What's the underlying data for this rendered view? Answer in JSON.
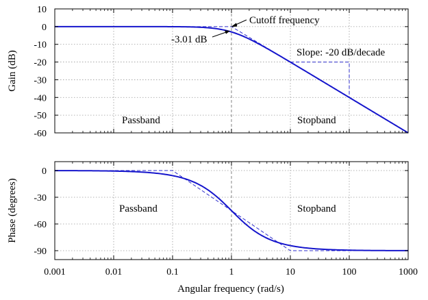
{
  "chart_data": [
    {
      "type": "line",
      "ylabel": "Gain (dB)",
      "xscale": "log",
      "xlim": [
        0.001,
        1000
      ],
      "ylim": [
        -60,
        10
      ],
      "yticks": [
        "10",
        "0",
        "-10",
        "-20",
        "-30",
        "-40",
        "-50",
        "-60"
      ],
      "grid": true,
      "series": [
        {
          "x": [
            0.001,
            0.01,
            0.1,
            0.3,
            0.5,
            1,
            2,
            3,
            10,
            100,
            1000
          ],
          "y": [
            0,
            0,
            -0.04,
            -0.37,
            -0.97,
            -3.01,
            -6.99,
            -10,
            -20.04,
            -40,
            -60
          ]
        }
      ],
      "asymptote": {
        "x": [
          0.001,
          1,
          1000
        ],
        "y": [
          0,
          0,
          -60
        ]
      },
      "slope_triangle": {
        "x": [
          10,
          100,
          100
        ],
        "y": [
          -20,
          -20,
          -40
        ]
      },
      "annotations": {
        "cutoff": "Cutoff frequency",
        "minus3db": "-3.01 dB",
        "slope": "Slope: -20 dB/decade",
        "passband": "Passband",
        "stopband": "Stopband"
      }
    },
    {
      "type": "line",
      "ylabel": "Phase (degrees)",
      "xlabel": "Angular frequency (rad/s)",
      "xscale": "log",
      "xlim": [
        0.001,
        1000
      ],
      "ylim": [
        -100,
        10
      ],
      "xticks": [
        "0.001",
        "0.01",
        "0.1",
        "1",
        "10",
        "100",
        "1000"
      ],
      "yticks": [
        "0",
        "-30",
        "-60",
        "-90"
      ],
      "grid": true,
      "series": [
        {
          "x": [
            0.001,
            0.01,
            0.1,
            0.2,
            0.5,
            1,
            2,
            5,
            10,
            100,
            1000
          ],
          "y": [
            -0.06,
            -0.57,
            -5.71,
            -11.31,
            -26.57,
            -45,
            -63.43,
            -78.69,
            -84.29,
            -89.43,
            -89.94
          ]
        }
      ],
      "asymptote": {
        "x": [
          0.001,
          0.1,
          10,
          1000
        ],
        "y": [
          0,
          0,
          -90,
          -90
        ]
      },
      "annotations": {
        "passband": "Passband",
        "stopband": "Stopband"
      }
    }
  ]
}
